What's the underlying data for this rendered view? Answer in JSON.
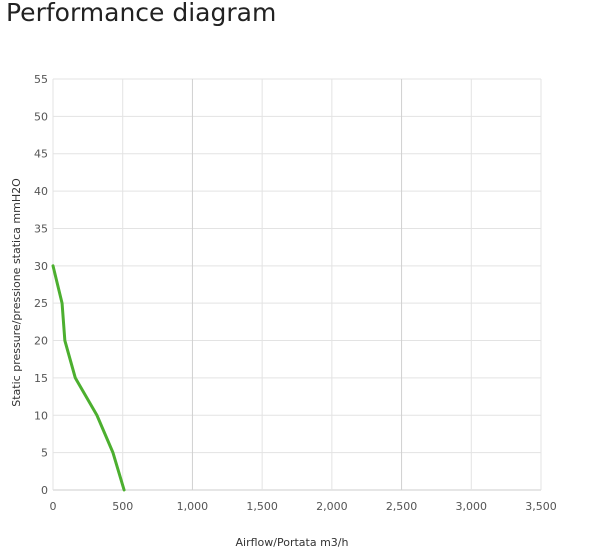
{
  "title": "Performance diagram",
  "chart_data": {
    "type": "line",
    "xlabel": "Airflow/Portata m3/h",
    "ylabel": "Static pressure/pressione statica mmH2O",
    "xlim": [
      0,
      3500
    ],
    "ylim": [
      0,
      55
    ],
    "xticks": [
      0,
      500,
      1000,
      1500,
      2000,
      2500,
      3000,
      3500
    ],
    "xtick_labels": [
      "0",
      "500",
      "1,000",
      "1,500",
      "2,000",
      "2,500",
      "3,000",
      "3,500"
    ],
    "yticks": [
      0,
      5,
      10,
      15,
      20,
      25,
      30,
      35,
      40,
      45,
      50,
      55
    ],
    "grid": true,
    "series": [
      {
        "color": "#4caf2f",
        "x": [
          0,
          65,
          85,
          160,
          315,
          430,
          510
        ],
        "y": [
          30,
          25,
          20,
          15,
          10,
          5,
          0
        ]
      }
    ]
  }
}
